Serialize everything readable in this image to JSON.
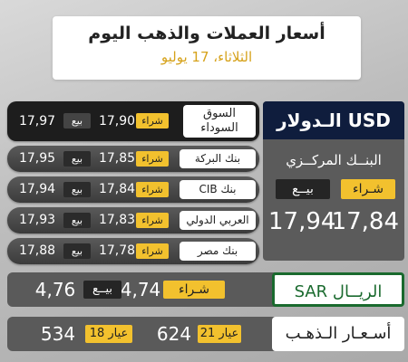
{
  "header": {
    "title": "أسعار العملات والذهب اليوم",
    "date": "الثلاثاء، 17 يوليو"
  },
  "banks": [
    {
      "name": "السوق السوداء",
      "buy_label": "شراء",
      "buy": "17,90",
      "sell_label": "بيع",
      "sell": "17,97"
    },
    {
      "name": "بنك البركة",
      "buy_label": "شراء",
      "buy": "17,85",
      "sell_label": "بيع",
      "sell": "17,95"
    },
    {
      "name": "بنك CIB",
      "buy_label": "شراء",
      "buy": "17,84",
      "sell_label": "بيع",
      "sell": "17,94"
    },
    {
      "name": "العربي الدولي",
      "buy_label": "شراء",
      "buy": "17,83",
      "sell_label": "بيع",
      "sell": "17,93"
    },
    {
      "name": "بنك مصر",
      "buy_label": "شراء",
      "buy": "17,78",
      "sell_label": "بيع",
      "sell": "17,88"
    }
  ],
  "usd": {
    "title": "الـدولار USD",
    "bank": "البنــك المركــزي",
    "buy_label": "شـراء",
    "sell_label": "بيــع",
    "buy": "17,84",
    "sell": "17,94"
  },
  "sar": {
    "label": "الريــال SAR",
    "buy_label": "شـراء",
    "buy": "4,74",
    "sell_label": "بيــع",
    "sell": "4,76"
  },
  "gold": {
    "label": "أسـعـار الـذهـب",
    "k21_label": "عيار 21",
    "k21": "624",
    "k18_label": "عيار 18",
    "k18": "534"
  },
  "colors": {
    "accent_yellow": "#f2c12e",
    "usd_header": "#0f1d3d",
    "sar_green": "#1a6a2e",
    "date_gold": "#d6a21b"
  }
}
